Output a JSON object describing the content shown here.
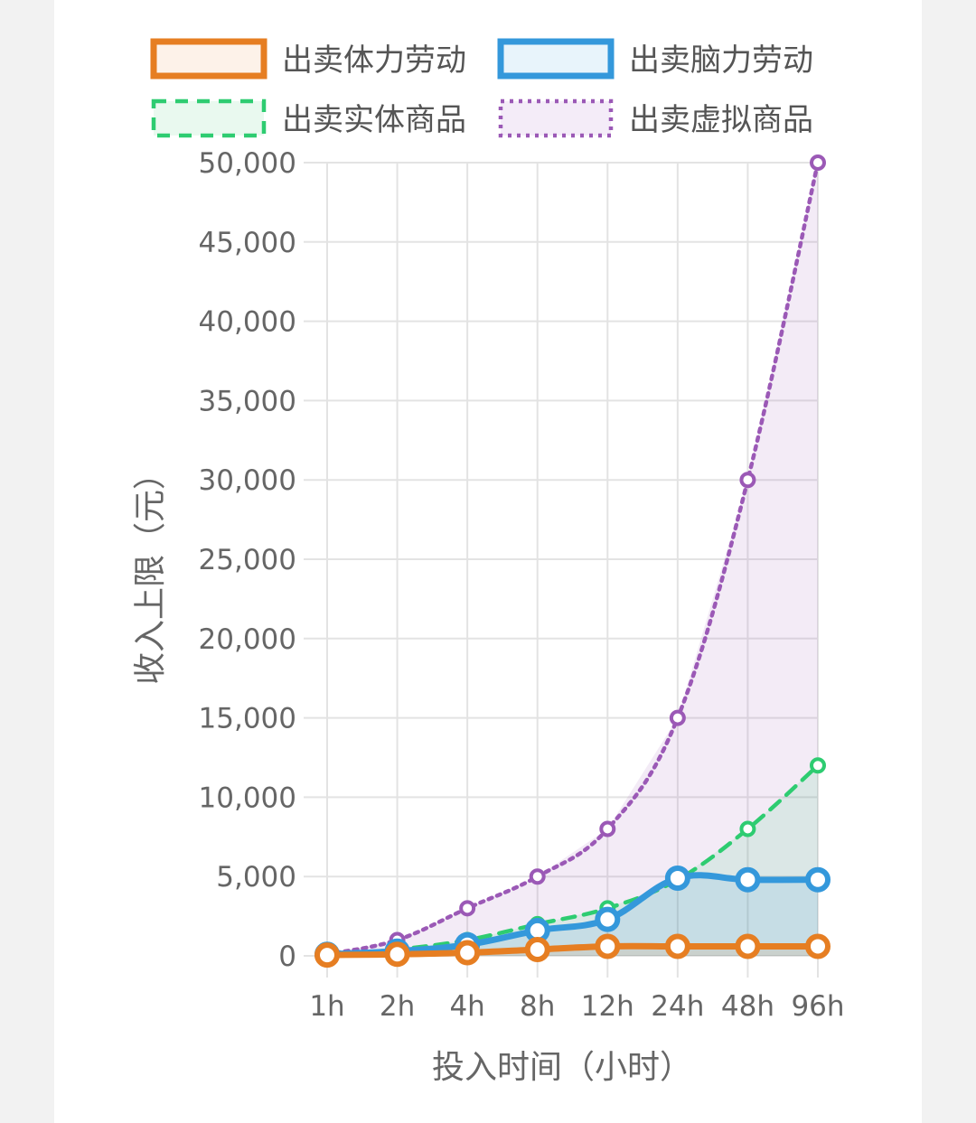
{
  "chart_data": {
    "type": "line",
    "title": "",
    "xlabel": "投入时间（小时）",
    "ylabel": "收入上限（元）",
    "categories": [
      "1h",
      "2h",
      "4h",
      "8h",
      "12h",
      "24h",
      "48h",
      "96h"
    ],
    "ylim": [
      0,
      50000
    ],
    "yticks": [
      "0",
      "5,000",
      "10,000",
      "15,000",
      "20,000",
      "25,000",
      "30,000",
      "35,000",
      "40,000",
      "45,000",
      "50,000"
    ],
    "grid": true,
    "legend_position": "top",
    "series": [
      {
        "name": "出卖体力劳动",
        "values": [
          50,
          100,
          200,
          400,
          600,
          600,
          600,
          600
        ],
        "color": "#e67e22",
        "fill": "#fdf2e9",
        "style": "solid"
      },
      {
        "name": "出卖脑力劳动",
        "values": [
          100,
          300,
          700,
          1600,
          2300,
          4900,
          4800,
          4800
        ],
        "color": "#3498db",
        "fill": "#e8f4fb",
        "style": "solid"
      },
      {
        "name": "出卖实体商品",
        "values": [
          50,
          400,
          1000,
          2000,
          3000,
          4800,
          8000,
          12000
        ],
        "color": "#2ecc71",
        "fill": "#e9f9ef",
        "style": "dashed"
      },
      {
        "name": "出卖虚拟商品",
        "values": [
          100,
          1000,
          3000,
          5000,
          8000,
          15000,
          30000,
          50000
        ],
        "color": "#9b59b6",
        "fill": "#f4ecf8",
        "style": "dotted"
      }
    ]
  }
}
